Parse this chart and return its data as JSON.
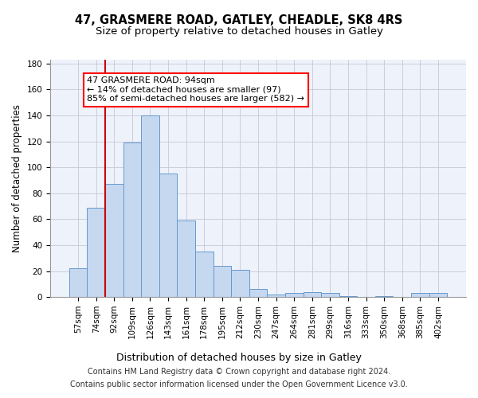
{
  "title": "47, GRASMERE ROAD, GATLEY, CHEADLE, SK8 4RS",
  "subtitle": "Size of property relative to detached houses in Gatley",
  "xlabel": "Distribution of detached houses by size in Gatley",
  "ylabel": "Number of detached properties",
  "bar_labels": [
    "57sqm",
    "74sqm",
    "92sqm",
    "109sqm",
    "126sqm",
    "143sqm",
    "161sqm",
    "178sqm",
    "195sqm",
    "212sqm",
    "230sqm",
    "247sqm",
    "264sqm",
    "281sqm",
    "299sqm",
    "316sqm",
    "333sqm",
    "350sqm",
    "368sqm",
    "385sqm",
    "402sqm"
  ],
  "bar_values": [
    22,
    69,
    87,
    119,
    140,
    95,
    59,
    35,
    24,
    21,
    6,
    2,
    3,
    4,
    3,
    1,
    0,
    1,
    0,
    3,
    3
  ],
  "bar_color": "#c5d8f0",
  "bar_edge_color": "#6699cc",
  "vline_color": "#cc0000",
  "vline_x_index": 2,
  "annotation_text": "47 GRASMERE ROAD: 94sqm\n← 14% of detached houses are smaller (97)\n85% of semi-detached houses are larger (582) →",
  "annotation_box_color": "white",
  "annotation_box_edge": "red",
  "footer1": "Contains HM Land Registry data © Crown copyright and database right 2024.",
  "footer2": "Contains public sector information licensed under the Open Government Licence v3.0.",
  "ylim": [
    0,
    183
  ],
  "bg_color": "#eef2fb",
  "grid_color": "#c8c8d8",
  "title_fontsize": 10.5,
  "subtitle_fontsize": 9.5,
  "ylabel_fontsize": 8.5,
  "xlabel_fontsize": 9,
  "tick_fontsize": 7.5,
  "footer_fontsize": 7,
  "annot_fontsize": 8
}
